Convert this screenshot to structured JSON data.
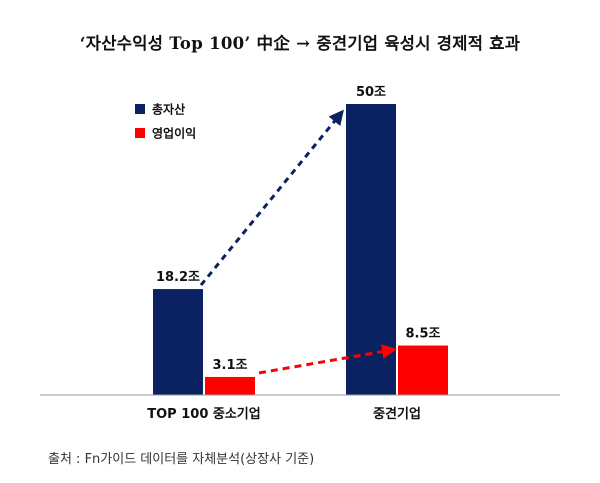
{
  "chart_data": {
    "type": "bar",
    "title": "‘자산수익성 Top 100’ 中企 → 중견기업 육성시 경제적 효과",
    "categories": [
      "TOP 100 중소기업",
      "중견기업"
    ],
    "series": [
      {
        "name": "총자산",
        "values": [
          18.2,
          50
        ],
        "value_labels": [
          "18.2조",
          "50조"
        ],
        "color": "#0b2262"
      },
      {
        "name": "영업이익",
        "values": [
          3.1,
          8.5
        ],
        "value_labels": [
          "3.1조",
          "8.5조"
        ],
        "color": "#ff0000"
      }
    ],
    "ylim": [
      0,
      50
    ],
    "xlabel": "",
    "ylabel": "",
    "legend": "top-left",
    "grid": false
  },
  "source": "출처 : Fn가이드 데이터를 자체분석(상장사 기준)"
}
